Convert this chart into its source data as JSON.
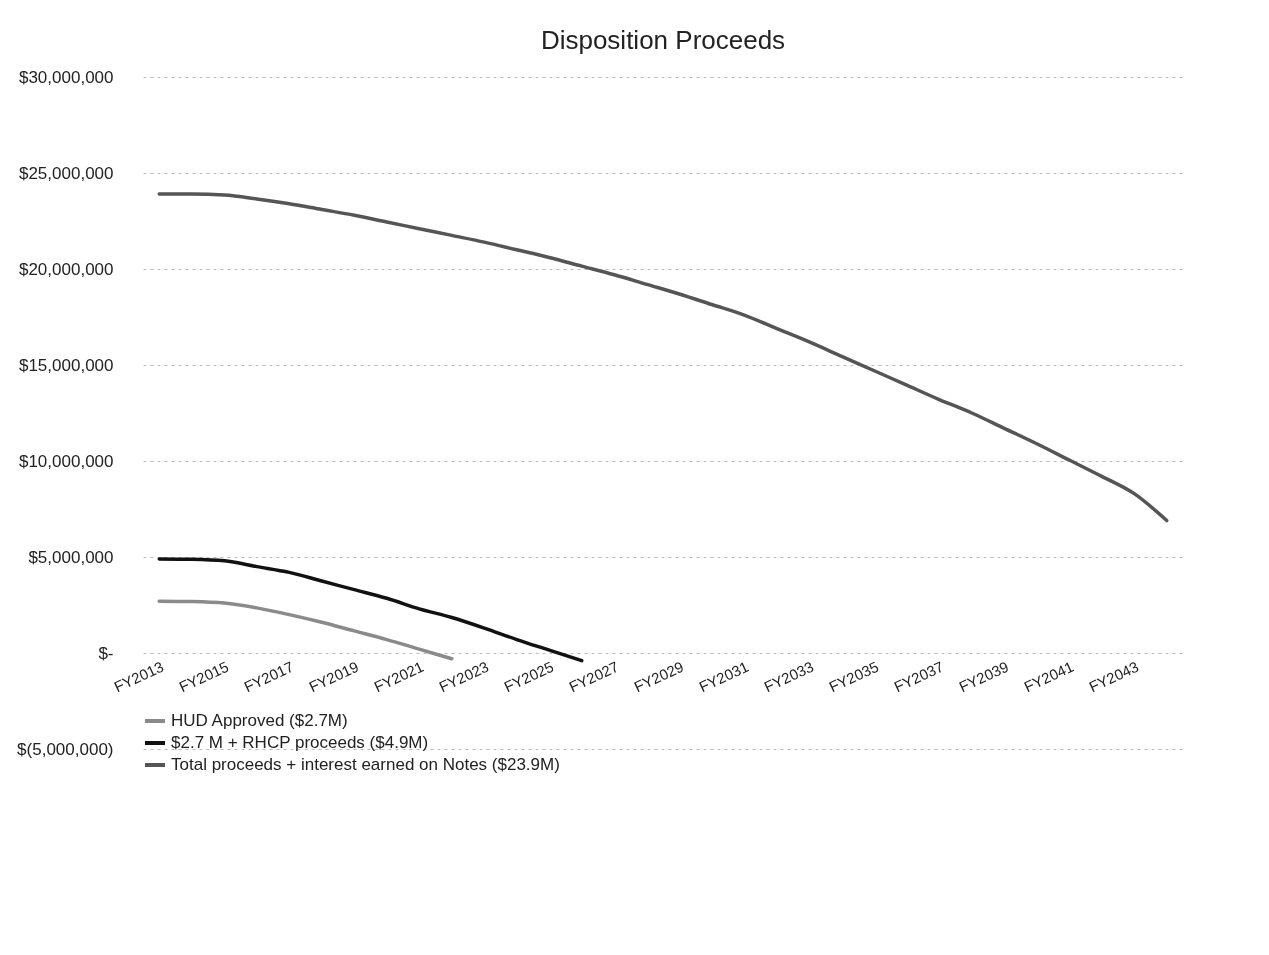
{
  "chart_data": {
    "type": "line",
    "title": "Disposition Proceeds",
    "categories": [
      "FY2013",
      null,
      "FY2015",
      null,
      "FY2017",
      null,
      "FY2019",
      null,
      "FY2021",
      null,
      "FY2023",
      null,
      "FY2025",
      null,
      "FY2027",
      null,
      "FY2029",
      null,
      "FY2031",
      null,
      "FY2033",
      null,
      "FY2035",
      null,
      "FY2037",
      null,
      "FY2039",
      null,
      "FY2041",
      null,
      "FY2043",
      null
    ],
    "series": [
      {
        "name": "HUD Approved ($2.7M)",
        "color": "#8a8a8a",
        "values": [
          2700000,
          2680000,
          2600000,
          2350000,
          2000000,
          1600000,
          1150000,
          700000,
          200000,
          -300000,
          null,
          null,
          null,
          null,
          null,
          null,
          null,
          null,
          null,
          null,
          null,
          null,
          null,
          null,
          null,
          null,
          null,
          null,
          null,
          null,
          null,
          null
        ]
      },
      {
        "name": "$2.7 M + RHCP proceeds ($4.9M)",
        "color": "#111111",
        "values": [
          4900000,
          4880000,
          4800000,
          4500000,
          4200000,
          3750000,
          3300000,
          2850000,
          2300000,
          1850000,
          1300000,
          700000,
          150000,
          -400000,
          null,
          null,
          null,
          null,
          null,
          null,
          null,
          null,
          null,
          null,
          null,
          null,
          null,
          null,
          null,
          null,
          null,
          null
        ]
      },
      {
        "name": "Total proceeds + interest earned on Notes ($23.9M)",
        "color": "#555555",
        "values": [
          23900000,
          23900000,
          23850000,
          23650000,
          23400000,
          23100000,
          22800000,
          22450000,
          22100000,
          21750000,
          21400000,
          21000000,
          20600000,
          20150000,
          19700000,
          19200000,
          18700000,
          18150000,
          17600000,
          16900000,
          16200000,
          15450000,
          14700000,
          13950000,
          13200000,
          12500000,
          11700000,
          10900000,
          10050000,
          9200000,
          8300000,
          6900000
        ]
      }
    ],
    "ylim": [
      -5000000,
      30000000
    ],
    "yticks": [
      {
        "value": -5000000,
        "label": "$(5,000,000)"
      },
      {
        "value": 0,
        "label": "$-"
      },
      {
        "value": 5000000,
        "label": "$5,000,000"
      },
      {
        "value": 10000000,
        "label": "$10,000,000"
      },
      {
        "value": 15000000,
        "label": "$15,000,000"
      },
      {
        "value": 20000000,
        "label": "$20,000,000"
      },
      {
        "value": 25000000,
        "label": "$25,000,000"
      },
      {
        "value": 30000000,
        "label": "$30,000,000"
      }
    ],
    "grid": "y",
    "legend": "bottom",
    "line_style": "solid",
    "marker": "none"
  }
}
